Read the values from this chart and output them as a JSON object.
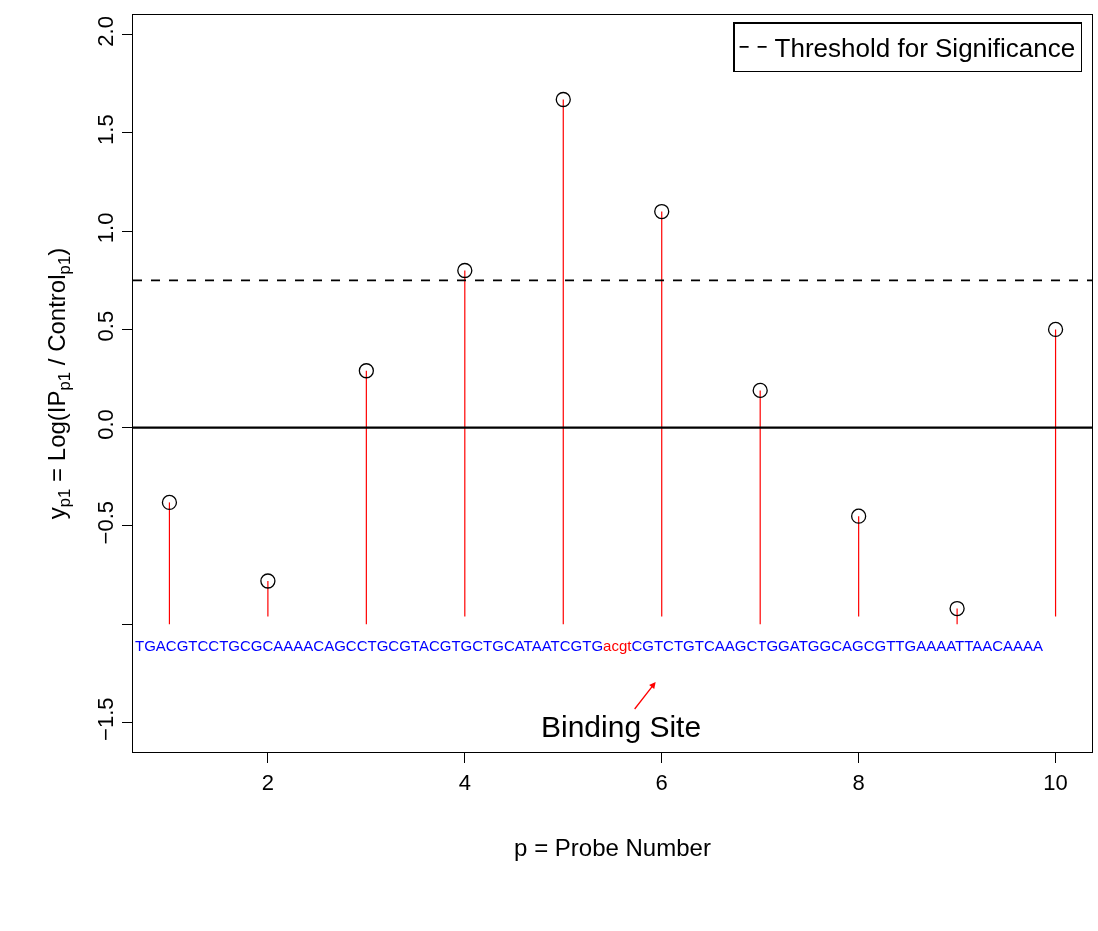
{
  "chart_data": {
    "type": "lollipop",
    "xlabel": "p = Probe Number",
    "ylabel": "y$_{p1}$ = Log(IP$_{p1}$ / Control$_{p1}$)",
    "x": [
      1,
      2,
      3,
      4,
      5,
      6,
      7,
      8,
      9,
      10
    ],
    "values": [
      -0.38,
      -0.78,
      0.29,
      0.8,
      1.67,
      1.1,
      0.19,
      -0.45,
      -0.92,
      0.5
    ],
    "errors": [
      [
        -1.0,
        -0.38
      ],
      [
        -0.96,
        -0.78
      ],
      [
        -1.0,
        0.29
      ],
      [
        -0.96,
        0.8
      ],
      [
        -1.0,
        1.67
      ],
      [
        -0.96,
        1.1
      ],
      [
        -1.0,
        0.19
      ],
      [
        -0.96,
        -0.45
      ],
      [
        -1.0,
        -0.92
      ],
      [
        -0.96,
        0.5
      ]
    ],
    "color": "#000000",
    "marker": "circle",
    "xlim": [
      0.63,
      10.37
    ],
    "xticks": [
      2,
      4,
      6,
      8,
      10
    ],
    "ylim": [
      -1.65,
      2.1
    ],
    "yticks": [
      {
        "value": -1.5,
        "label": "−1.5"
      },
      {
        "value": -1.0,
        "label": null
      },
      {
        "value": -0.5,
        "label": "−0.5"
      },
      {
        "value": 0,
        "label": "0.0"
      },
      {
        "value": 0.5,
        "label": "0.5"
      },
      {
        "value": 1.0,
        "label": "1.0"
      },
      {
        "value": 1.5,
        "label": "1.5"
      },
      {
        "value": 2.0,
        "label": "2.0"
      }
    ],
    "legend": "top right",
    "ref_lines": [
      {
        "axis": "y",
        "value": 0,
        "color": "#000000",
        "line_style": "solid"
      },
      {
        "axis": "y",
        "value": 0.75,
        "label": "Threshold for Significance",
        "color": "#000000",
        "line_style": "dashed"
      }
    ],
    "annotations": [
      "TGACGTCCTGCGCAAAACAGCCTGCGTACGTGCTGCATAATCGTG",
      "acgt",
      "CGTCTGTCAAGCTGGATGGCAGCGTTGAAAATTAACAAAA",
      "Binding Site"
    ]
  }
}
